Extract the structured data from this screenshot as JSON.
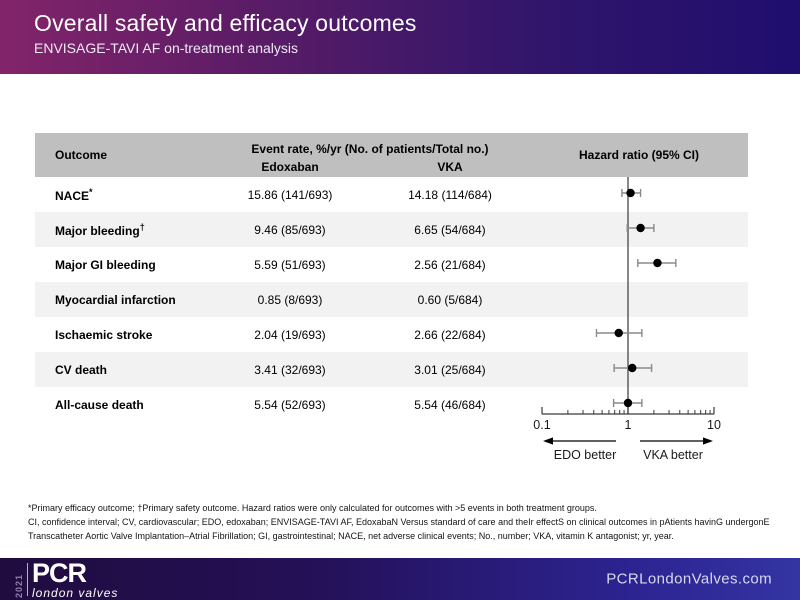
{
  "header": {
    "title": "Overall safety and efficacy outcomes",
    "subtitle": "ENVISAGE-TAVI AF on-treatment analysis"
  },
  "table": {
    "col_outcome": "Outcome",
    "col_event_rate": "Event rate, %/yr (No. of patients/Total no.)",
    "col_edoxaban": "Edoxaban",
    "col_vka": "VKA",
    "col_hazard": "Hazard ratio (95% CI)",
    "header_bg": "#bfbfbf",
    "stripe_bg": "#f2f2f2",
    "rows": [
      {
        "outcome": "NACE",
        "sup": "*",
        "edoxaban": "15.86 (141/693)",
        "vka": "14.18 (114/684)"
      },
      {
        "outcome": "Major bleeding",
        "sup": "†",
        "edoxaban": "9.46 (85/693)",
        "vka": "6.65 (54/684)"
      },
      {
        "outcome": "Major GI bleeding",
        "sup": "",
        "edoxaban": "5.59 (51/693)",
        "vka": "2.56 (21/684)"
      },
      {
        "outcome": "Myocardial infarction",
        "sup": "",
        "edoxaban": "0.85 (8/693)",
        "vka": "0.60 (5/684)"
      },
      {
        "outcome": "Ischaemic stroke",
        "sup": "",
        "edoxaban": "2.04 (19/693)",
        "vka": "2.66 (22/684)"
      },
      {
        "outcome": "CV death",
        "sup": "",
        "edoxaban": "3.41 (32/693)",
        "vka": "3.01 (25/684)"
      },
      {
        "outcome": "All-cause death",
        "sup": "",
        "edoxaban": "5.54 (52/693)",
        "vka": "5.54 (46/684)"
      }
    ]
  },
  "chart_data": {
    "type": "scatter",
    "subtype": "forest-plot",
    "title": "Hazard ratio (95% CI)",
    "x_scale": "log",
    "xlim": [
      0.1,
      10
    ],
    "x_ticks": [
      0.1,
      1,
      10
    ],
    "x_tick_labels": [
      "0.1",
      "1",
      "10"
    ],
    "reference_line": 1,
    "grid": false,
    "direction_labels": {
      "left": "EDO better",
      "right": "VKA better"
    },
    "series": [
      {
        "outcome": "NACE",
        "hr": 1.07,
        "ci_low": 0.85,
        "ci_high": 1.4,
        "edoxaban_rate": 15.86,
        "vka_rate": 14.18
      },
      {
        "outcome": "Major bleeding",
        "hr": 1.4,
        "ci_low": 0.98,
        "ci_high": 2.0,
        "edoxaban_rate": 9.46,
        "vka_rate": 6.65
      },
      {
        "outcome": "Major GI bleeding",
        "hr": 2.2,
        "ci_low": 1.3,
        "ci_high": 3.6,
        "edoxaban_rate": 5.59,
        "vka_rate": 2.56
      },
      {
        "outcome": "Myocardial infarction",
        "hr": null,
        "ci_low": null,
        "ci_high": null,
        "edoxaban_rate": 0.85,
        "vka_rate": 0.6
      },
      {
        "outcome": "Ischaemic stroke",
        "hr": 0.78,
        "ci_low": 0.43,
        "ci_high": 1.45,
        "edoxaban_rate": 2.04,
        "vka_rate": 2.66
      },
      {
        "outcome": "CV death",
        "hr": 1.12,
        "ci_low": 0.69,
        "ci_high": 1.88,
        "edoxaban_rate": 3.41,
        "vka_rate": 3.01
      },
      {
        "outcome": "All-cause death",
        "hr": 1.0,
        "ci_low": 0.68,
        "ci_high": 1.45,
        "edoxaban_rate": 5.54,
        "vka_rate": 5.54
      }
    ]
  },
  "footnotes": [
    "*Primary efficacy outcome; †Primary safety outcome. Hazard ratios were only calculated for outcomes with >5 events in both treatment groups.",
    "CI, confidence interval; CV, cardiovascular; EDO, edoxaban; ENVISAGE-TAVI AF, EdoxabaN Versus standard of care and theIr effectS on clinical outcomes in pAtients havinG undergonE",
    "Transcatheter Aortic Valve Implantation–Atrial Fibrillation; GI, gastrointestinal; NACE, net adverse clinical events; No., number; VKA, vitamin K antagonist; yr, year."
  ],
  "footer": {
    "year": "2021",
    "logo_main": "PCR",
    "logo_sub": "london valves",
    "website": "PCRLondonValves.com"
  },
  "colors": {
    "banner_gradient_left": "#83246a",
    "banner_gradient_right": "#1f0e6e",
    "footer_gradient_left": "#200c3e",
    "footer_gradient_right": "#3434a3",
    "table_header_bg": "#bfbfbf",
    "row_stripe_bg": "#f2f2f2",
    "ci_whisker": "#8a8a8a",
    "point_fill": "#000000"
  }
}
